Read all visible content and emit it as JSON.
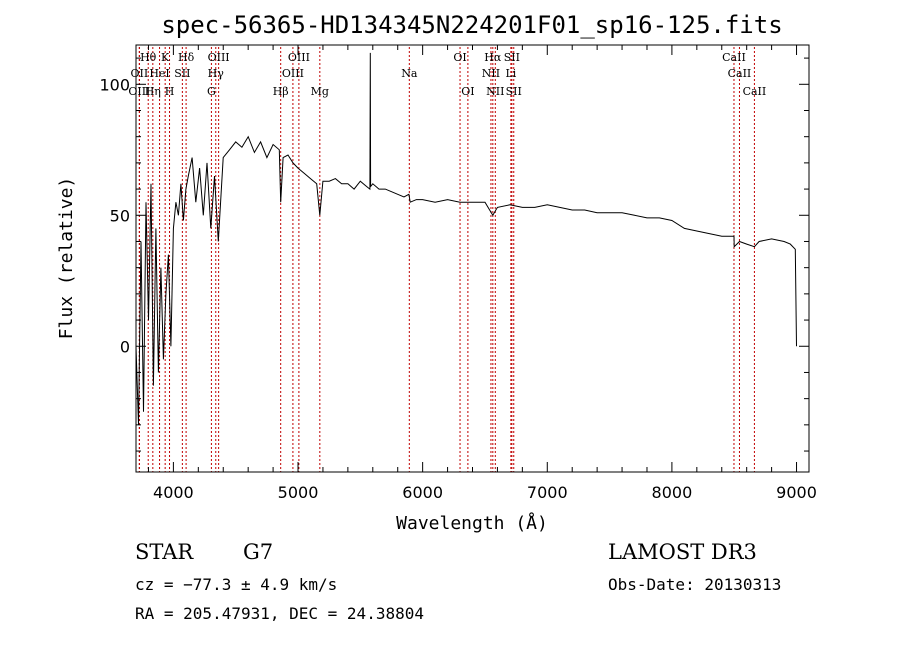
{
  "chart_data": {
    "type": "line",
    "title": "spec-56365-HD134345N224201F01_sp16-125.fits",
    "xlabel": "Wavelength (Å)",
    "ylabel": "Flux (relative)",
    "xlim": [
      3700,
      9100
    ],
    "ylim": [
      -48,
      115
    ],
    "xticks": [
      4000,
      5000,
      6000,
      7000,
      8000,
      9000
    ],
    "yticks": [
      0,
      50,
      100
    ],
    "xtick_labels": [
      "4000",
      "5000",
      "6000",
      "7000",
      "8000",
      "9000"
    ],
    "ytick_labels": [
      "0",
      "50",
      "100"
    ],
    "grid": false,
    "series": [
      {
        "name": "spectrum",
        "x": [
          3700,
          3720,
          3740,
          3760,
          3780,
          3800,
          3820,
          3840,
          3860,
          3880,
          3900,
          3920,
          3940,
          3960,
          3980,
          4000,
          4020,
          4040,
          4060,
          4080,
          4100,
          4120,
          4150,
          4180,
          4210,
          4240,
          4270,
          4300,
          4330,
          4360,
          4400,
          4450,
          4500,
          4550,
          4600,
          4650,
          4700,
          4750,
          4800,
          4850,
          4861,
          4880,
          4920,
          4960,
          5000,
          5050,
          5100,
          5150,
          5175,
          5200,
          5250,
          5300,
          5350,
          5400,
          5450,
          5500,
          5550,
          5577,
          5580,
          5582,
          5600,
          5650,
          5700,
          5750,
          5800,
          5850,
          5890,
          5900,
          5950,
          6000,
          6100,
          6200,
          6300,
          6400,
          6500,
          6563,
          6600,
          6700,
          6800,
          6900,
          7000,
          7100,
          7200,
          7300,
          7400,
          7500,
          7600,
          7700,
          7800,
          7900,
          8000,
          8100,
          8200,
          8300,
          8400,
          8498,
          8500,
          8542,
          8600,
          8662,
          8700,
          8800,
          8900,
          8950,
          8990,
          9000
        ],
        "y": [
          0,
          -30,
          40,
          -25,
          55,
          10,
          62,
          -15,
          45,
          -10,
          30,
          -5,
          20,
          35,
          0,
          45,
          55,
          50,
          62,
          48,
          60,
          65,
          72,
          55,
          68,
          50,
          70,
          45,
          65,
          40,
          72,
          75,
          78,
          76,
          80,
          74,
          78,
          72,
          77,
          75,
          55,
          72,
          73,
          70,
          68,
          66,
          64,
          62,
          50,
          63,
          63,
          64,
          62,
          62,
          60,
          63,
          61,
          60,
          112,
          61,
          62,
          60,
          60,
          59,
          58,
          57,
          58,
          55,
          56,
          56,
          55,
          56,
          55,
          55,
          55,
          50,
          53,
          54,
          53,
          53,
          54,
          53,
          52,
          52,
          51,
          51,
          51,
          50,
          49,
          49,
          48,
          45,
          44,
          43,
          42,
          42,
          38,
          40,
          39,
          38,
          40,
          41,
          40,
          39,
          37,
          0
        ]
      }
    ],
    "line_annotations": [
      {
        "label": "Hθ",
        "x": 3798,
        "row": 1
      },
      {
        "label": "OII",
        "x": 3727,
        "row": 2
      },
      {
        "label": "OIII",
        "x": 3727,
        "row": 3
      },
      {
        "label": "K",
        "x": 3934,
        "row": 1
      },
      {
        "label": "HeI",
        "x": 3889,
        "row": 2
      },
      {
        "label": "Hη",
        "x": 3835,
        "row": 3
      },
      {
        "label": "Hδ",
        "x": 4102,
        "row": 1
      },
      {
        "label": "SII",
        "x": 4072,
        "row": 2
      },
      {
        "label": "H",
        "x": 3969,
        "row": 3
      },
      {
        "label": "OIII",
        "x": 4363,
        "row": 1
      },
      {
        "label": "Hγ",
        "x": 4340,
        "row": 2
      },
      {
        "label": "G",
        "x": 4305,
        "row": 3
      },
      {
        "label": "OIII",
        "x": 5007,
        "row": 1
      },
      {
        "label": "OIII",
        "x": 4959,
        "row": 2
      },
      {
        "label": "Hβ",
        "x": 4861,
        "row": 3
      },
      {
        "label": "Mg",
        "x": 5175,
        "row": 3
      },
      {
        "label": "Na",
        "x": 5893,
        "row": 2
      },
      {
        "label": "OI",
        "x": 6300,
        "row": 1
      },
      {
        "label": "OI",
        "x": 6363,
        "row": 3
      },
      {
        "label": "Hα",
        "x": 6563,
        "row": 1
      },
      {
        "label": "SII",
        "x": 6716,
        "row": 1
      },
      {
        "label": "NII",
        "x": 6548,
        "row": 2
      },
      {
        "label": "Li",
        "x": 6708,
        "row": 2
      },
      {
        "label": "NII",
        "x": 6583,
        "row": 3
      },
      {
        "label": "SII",
        "x": 6731,
        "row": 3
      },
      {
        "label": "CaII",
        "x": 8498,
        "row": 1
      },
      {
        "label": "CaII",
        "x": 8542,
        "row": 2
      },
      {
        "label": "CaII",
        "x": 8662,
        "row": 3
      }
    ],
    "line_color": "#000000",
    "marker_color": "#c00000"
  },
  "info": {
    "object_class": "STAR",
    "subclass": "G7",
    "survey": "LAMOST DR3",
    "cz": "cz = −77.3 ± 4.9 km/s",
    "obs_date": "Obs-Date: 20130313",
    "coords": "RA = 205.47931, DEC =  24.38804"
  }
}
